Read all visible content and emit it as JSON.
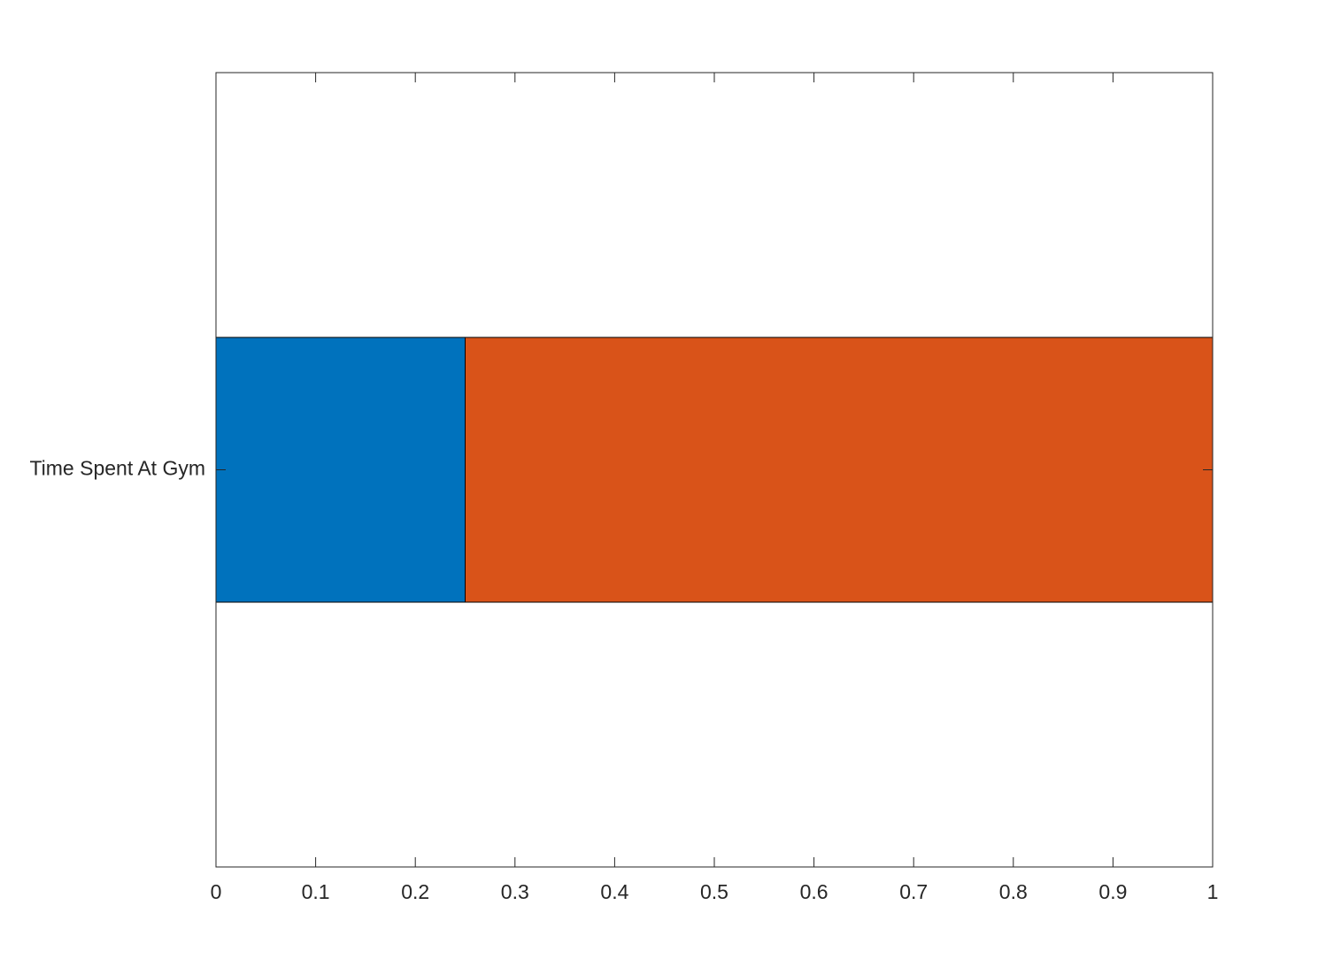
{
  "chart_data": {
    "type": "stacked-barh",
    "categories": [
      "Time Spent At Gym"
    ],
    "series": [
      {
        "color": "#0072bd",
        "values": [
          0.25
        ]
      },
      {
        "color": "#d95319",
        "values": [
          0.75
        ]
      }
    ],
    "xlim": [
      0,
      1
    ],
    "xticks": [
      0,
      0.1,
      0.2,
      0.3,
      0.4,
      0.5,
      0.6,
      0.7,
      0.8,
      0.9,
      1
    ],
    "grid": false
  }
}
